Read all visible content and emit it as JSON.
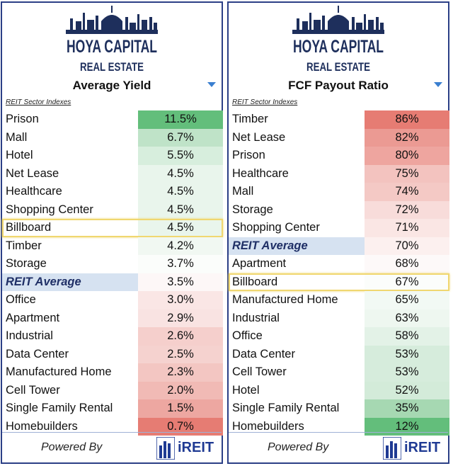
{
  "brand": {
    "line1": "HOYA CAPITAL",
    "line2": "REAL ESTATE"
  },
  "footer": {
    "powered_by": "Powered By",
    "ireit": "iREIT"
  },
  "colors": {
    "border": "#2b3f86",
    "highlight": "#f0d770",
    "green": "#63be7b",
    "red": "#e67c73",
    "avg_fill": "#d6e2f1"
  },
  "chart_data": [
    {
      "type": "table",
      "title": "Average Yield",
      "subtitle": "REIT Sector Indexes",
      "highlighted": "Billboard",
      "average_label": "REIT Average",
      "rows": [
        {
          "label": "Prison",
          "value": 11.5,
          "display": "11.5%",
          "color": "#63be7b"
        },
        {
          "label": "Mall",
          "value": 6.7,
          "display": "6.7%",
          "color": "#bfe3c8"
        },
        {
          "label": "Hotel",
          "value": 5.5,
          "display": "5.5%",
          "color": "#d7eedd"
        },
        {
          "label": "Net Lease",
          "value": 4.5,
          "display": "4.5%",
          "color": "#e9f5ec"
        },
        {
          "label": "Healthcare",
          "value": 4.5,
          "display": "4.5%",
          "color": "#e9f5ec"
        },
        {
          "label": "Shopping Center",
          "value": 4.5,
          "display": "4.5%",
          "color": "#e9f5ec"
        },
        {
          "label": "Billboard",
          "value": 4.5,
          "display": "4.5%",
          "color": "#e9f5ec"
        },
        {
          "label": "Timber",
          "value": 4.2,
          "display": "4.2%",
          "color": "#f1f8f2"
        },
        {
          "label": "Storage",
          "value": 3.7,
          "display": "3.7%",
          "color": "#fbfdfb"
        },
        {
          "label": "REIT Average",
          "value": 3.5,
          "display": "3.5%",
          "color": "#fdf7f7"
        },
        {
          "label": "Office",
          "value": 3.0,
          "display": "3.0%",
          "color": "#fae6e5"
        },
        {
          "label": "Apartment",
          "value": 2.9,
          "display": "2.9%",
          "color": "#f9e3e2"
        },
        {
          "label": "Industrial",
          "value": 2.6,
          "display": "2.6%",
          "color": "#f5cfcc"
        },
        {
          "label": "Data Center",
          "value": 2.5,
          "display": "2.5%",
          "color": "#f5d2cf"
        },
        {
          "label": "Manufactured Home",
          "value": 2.3,
          "display": "2.3%",
          "color": "#f3c6c2"
        },
        {
          "label": "Cell Tower",
          "value": 2.0,
          "display": "2.0%",
          "color": "#f1bab5"
        },
        {
          "label": "Single Family Rental",
          "value": 1.5,
          "display": "1.5%",
          "color": "#eda7a1"
        },
        {
          "label": "Homebuilders",
          "value": 0.7,
          "display": "0.7%",
          "color": "#e67c73"
        }
      ]
    },
    {
      "type": "table",
      "title": "FCF Payout Ratio",
      "subtitle": "REIT Sector Indexes",
      "highlighted": "Billboard",
      "average_label": "REIT Average",
      "rows": [
        {
          "label": "Timber",
          "value": 86,
          "display": "86%",
          "color": "#e67c73"
        },
        {
          "label": "Net Lease",
          "value": 82,
          "display": "82%",
          "color": "#eb9a93"
        },
        {
          "label": "Prison",
          "value": 80,
          "display": "80%",
          "color": "#eea59f"
        },
        {
          "label": "Healthcare",
          "value": 75,
          "display": "75%",
          "color": "#f3c3bf"
        },
        {
          "label": "Mall",
          "value": 74,
          "display": "74%",
          "color": "#f4c9c5"
        },
        {
          "label": "Storage",
          "value": 72,
          "display": "72%",
          "color": "#f8dcda"
        },
        {
          "label": "Shopping Center",
          "value": 71,
          "display": "71%",
          "color": "#fae6e4"
        },
        {
          "label": "REIT Average",
          "value": 70,
          "display": "70%",
          "color": "#fcf0ef"
        },
        {
          "label": "Apartment",
          "value": 68,
          "display": "68%",
          "color": "#fdf9f9"
        },
        {
          "label": "Billboard",
          "value": 67,
          "display": "67%",
          "color": "#fbfdfb"
        },
        {
          "label": "Manufactured Home",
          "value": 65,
          "display": "65%",
          "color": "#f2f9f4"
        },
        {
          "label": "Industrial",
          "value": 63,
          "display": "63%",
          "color": "#eef7f0"
        },
        {
          "label": "Office",
          "value": 58,
          "display": "58%",
          "color": "#e3f2e7"
        },
        {
          "label": "Data Center",
          "value": 53,
          "display": "53%",
          "color": "#d6ecdc"
        },
        {
          "label": "Cell Tower",
          "value": 53,
          "display": "53%",
          "color": "#d6ecdc"
        },
        {
          "label": "Hotel",
          "value": 52,
          "display": "52%",
          "color": "#d3ebd9"
        },
        {
          "label": "Single Family Rental",
          "value": 35,
          "display": "35%",
          "color": "#a6d8b2"
        },
        {
          "label": "Homebuilders",
          "value": 12,
          "display": "12%",
          "color": "#63be7b"
        }
      ]
    }
  ]
}
